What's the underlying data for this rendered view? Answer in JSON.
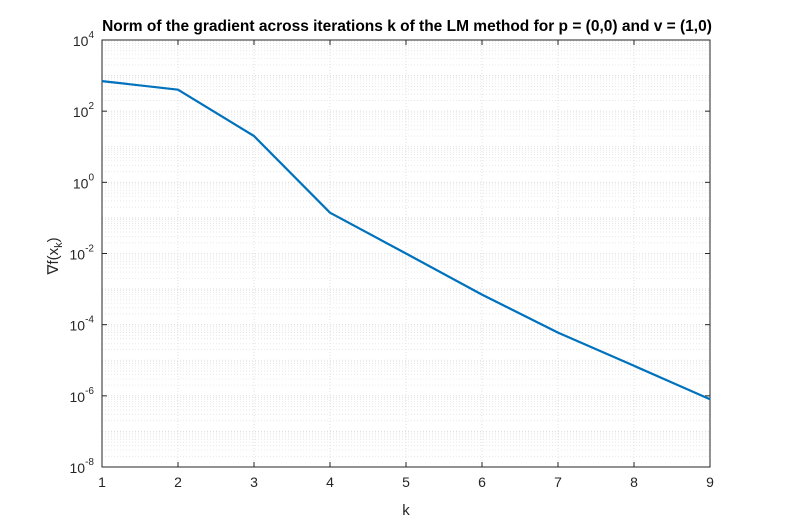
{
  "chart_data": {
    "type": "line",
    "title": "Norm of the gradient across iterations k of the LM method for p = (0,0) and v = (1,0)",
    "xlabel": "k",
    "ylabel": "∇f(x",
    "ylabel_sub": "k",
    "ylabel_close": ")",
    "xlim": [
      1,
      9
    ],
    "ylim": [
      1e-08,
      10000.0
    ],
    "yscale": "log",
    "grid": true,
    "minor_grid": true,
    "x_ticks": [
      "1",
      "2",
      "3",
      "4",
      "5",
      "6",
      "7",
      "8",
      "9"
    ],
    "y_ticks": [
      {
        "base": "10",
        "exp": "-8",
        "value": 1e-08
      },
      {
        "base": "10",
        "exp": "-6",
        "value": 1e-06
      },
      {
        "base": "10",
        "exp": "-4",
        "value": 0.0001
      },
      {
        "base": "10",
        "exp": "-2",
        "value": 0.01
      },
      {
        "base": "10",
        "exp": "0",
        "value": 1
      },
      {
        "base": "10",
        "exp": "2",
        "value": 100
      },
      {
        "base": "10",
        "exp": "4",
        "value": 10000
      }
    ],
    "series": [
      {
        "x": [
          1,
          2,
          3,
          4,
          5,
          6,
          7,
          8,
          9
        ],
        "y": [
          700,
          400,
          20,
          0.14,
          0.01,
          0.0007,
          6e-05,
          7e-06,
          8e-07
        ],
        "color": "#0072BD"
      }
    ]
  }
}
